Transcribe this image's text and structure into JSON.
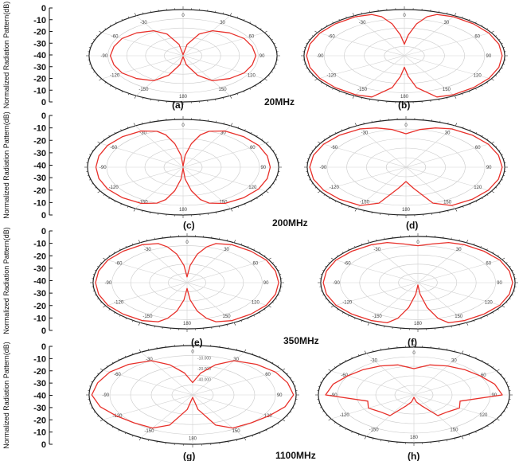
{
  "figure": {
    "ylabel": "Normalized Radiation Pattern(dB)",
    "yticks": [
      "0",
      "-10",
      "-20",
      "-30",
      "-40",
      "-30",
      "-20",
      "-10",
      "0"
    ],
    "angle_ticks": [
      "0",
      "30",
      "60",
      "90",
      "120",
      "150",
      "180",
      "-150",
      "-120",
      "-90",
      "-60",
      "-30"
    ],
    "rows": [
      {
        "freq": "20MHz",
        "left_label": "(a)",
        "right_label": "(b)"
      },
      {
        "freq": "200MHz",
        "left_label": "(c)",
        "right_label": "(d)"
      },
      {
        "freq": "350MHz",
        "left_label": "(e)",
        "right_label": "(f)"
      },
      {
        "freq": "1100MHz",
        "left_label": "(g)",
        "right_label": "(h)"
      }
    ],
    "inner_ring_labels": [
      "-10.000",
      "-20.000",
      "-40.000"
    ]
  },
  "chart_data": [
    {
      "type": "polar",
      "panel": "(a)",
      "frequency": "20MHz",
      "r_unit": "dB",
      "r_range": [
        -40,
        0
      ],
      "color": "#e8302a",
      "theta_deg": [
        0,
        10,
        20,
        30,
        45,
        60,
        75,
        90,
        105,
        120,
        135,
        150,
        160,
        170,
        180
      ],
      "r_db": [
        -40,
        -30,
        -20,
        -15,
        -12,
        -10,
        -9.5,
        -9,
        -9.5,
        -10,
        -12,
        -15,
        -22,
        -32,
        -40
      ]
    },
    {
      "type": "polar",
      "panel": "(b)",
      "frequency": "20MHz",
      "r_unit": "dB",
      "r_range": [
        -40,
        0
      ],
      "color": "#e8302a",
      "theta_deg": [
        0,
        5,
        10,
        15,
        20,
        30,
        45,
        60,
        75,
        90,
        105,
        120,
        135,
        150,
        160,
        170,
        175,
        180
      ],
      "r_db": [
        -30,
        -22,
        -12,
        -5,
        -2,
        -1,
        -1,
        -1,
        -1,
        -1,
        -1,
        -1,
        -1,
        -1,
        -2,
        -12,
        -22,
        -30
      ]
    },
    {
      "type": "polar",
      "panel": "(c)",
      "frequency": "200MHz",
      "r_unit": "dB",
      "r_range": [
        -40,
        0
      ],
      "color": "#e8302a",
      "theta_deg": [
        0,
        5,
        10,
        15,
        20,
        30,
        45,
        60,
        75,
        90,
        105,
        120,
        135,
        150,
        160,
        165,
        170,
        175,
        180
      ],
      "r_db": [
        -40,
        -30,
        -20,
        -12,
        -8,
        -5,
        -4,
        -3.5,
        -3.5,
        -3.5,
        -3.5,
        -3.5,
        -4,
        -5,
        -8,
        -12,
        -20,
        -30,
        -40
      ]
    },
    {
      "type": "polar",
      "panel": "(d)",
      "frequency": "200MHz",
      "r_unit": "dB",
      "r_range": [
        -40,
        0
      ],
      "color": "#e8302a",
      "theta_deg": [
        0,
        10,
        20,
        30,
        45,
        60,
        75,
        90,
        105,
        120,
        135,
        150,
        160,
        170,
        180
      ],
      "r_db": [
        -12,
        -8,
        -5,
        -3,
        -2,
        -1.5,
        -1.2,
        -1,
        -1.2,
        -1.5,
        -2,
        -3,
        -8,
        -22,
        -28
      ]
    },
    {
      "type": "polar",
      "panel": "(e)",
      "frequency": "350MHz",
      "r_unit": "dB",
      "r_range": [
        -40,
        0
      ],
      "color": "#e8302a",
      "theta_deg": [
        0,
        5,
        10,
        15,
        20,
        30,
        45,
        60,
        75,
        90,
        105,
        120,
        135,
        150,
        160,
        165,
        170,
        175,
        180
      ],
      "r_db": [
        -35,
        -25,
        -15,
        -8,
        -4,
        -2,
        -1.5,
        -1,
        -1,
        -1,
        -1,
        -1,
        -1.5,
        -2,
        -4,
        -8,
        -15,
        -25,
        -35
      ]
    },
    {
      "type": "polar",
      "panel": "(f)",
      "frequency": "350MHz",
      "r_unit": "dB",
      "r_range": [
        -40,
        0
      ],
      "color": "#e8302a",
      "theta_deg": [
        0,
        10,
        20,
        30,
        45,
        60,
        75,
        90,
        105,
        120,
        135,
        150,
        160,
        165,
        170,
        175,
        180
      ],
      "r_db": [
        -8,
        -6,
        -3,
        -2,
        -1.5,
        -1,
        -1,
        -1,
        -1,
        -1,
        -1.5,
        -2,
        -3,
        -8,
        -18,
        -30,
        -38
      ]
    },
    {
      "type": "polar",
      "panel": "(g)",
      "frequency": "1100MHz",
      "r_unit": "dB",
      "r_range": [
        -40,
        0
      ],
      "color": "#e8302a",
      "theta_deg": [
        0,
        10,
        20,
        30,
        45,
        60,
        75,
        90,
        105,
        120,
        135,
        150,
        160,
        170,
        180
      ],
      "r_db": [
        -30,
        -22,
        -14,
        -8,
        -5,
        -3,
        -2,
        -1,
        -3,
        -6,
        -8,
        -9,
        -14,
        -28,
        -38
      ]
    },
    {
      "type": "polar",
      "panel": "(h)",
      "frequency": "1100MHz",
      "r_unit": "dB",
      "r_range": [
        -40,
        0
      ],
      "color": "#e8302a",
      "theta_deg": [
        0,
        15,
        30,
        45,
        60,
        75,
        90,
        105,
        120,
        135,
        150,
        160,
        170,
        180
      ],
      "r_db": [
        -18,
        -14,
        -12,
        -10,
        -8,
        -5,
        -3,
        -20,
        -18,
        -20,
        -20,
        -30,
        -34,
        -38
      ]
    }
  ]
}
